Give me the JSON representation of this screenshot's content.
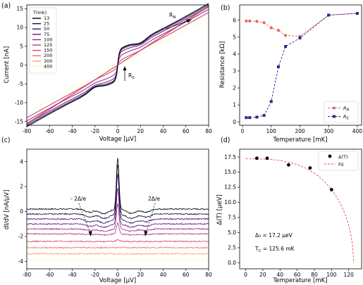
{
  "panels": {
    "a": "(a)",
    "b": "(b)",
    "c": "(c)",
    "d": "(d)"
  },
  "chart_data": [
    {
      "id": "a",
      "type": "line",
      "xlabel": "Voltage [μV]",
      "ylabel": "Current [nA]",
      "xlim": [
        -80,
        80
      ],
      "ylim": [
        -16,
        16
      ],
      "xticks": [
        -80,
        -60,
        -40,
        -20,
        0,
        20,
        40,
        60,
        80
      ],
      "yticks": [
        -15,
        -10,
        -5,
        0,
        5,
        10,
        15
      ],
      "legend_title": "T(mk)",
      "legend_position": "top-left",
      "series": [
        {
          "name": "13",
          "color": "#000004",
          "R": 5.2,
          "jump": 4.3,
          "dip": 0.9
        },
        {
          "name": "25",
          "color": "#140e36",
          "R": 5.2,
          "jump": 4.2,
          "dip": 0.9
        },
        {
          "name": "50",
          "color": "#3b0f70",
          "R": 5.3,
          "jump": 3.9,
          "dip": 0.8
        },
        {
          "name": "75",
          "color": "#641a80",
          "R": 5.4,
          "jump": 3.3,
          "dip": 0.6
        },
        {
          "name": "100",
          "color": "#8c2981",
          "R": 5.6,
          "jump": 2.3,
          "dip": 0.4
        },
        {
          "name": "125",
          "color": "#b73779",
          "R": 5.8,
          "jump": 0.9,
          "dip": 0.15
        },
        {
          "name": "150",
          "color": "#de4968",
          "R": 5.1,
          "jump": 0,
          "dip": 0
        },
        {
          "name": "200",
          "color": "#f7705c",
          "R": 5.1,
          "jump": 0,
          "dip": 0
        },
        {
          "name": "300",
          "color": "#fe9f6d",
          "R": 5.2,
          "jump": 0,
          "dip": 0
        },
        {
          "name": "400",
          "color": "#fbfdbf",
          "R": 6.4,
          "jump": 0,
          "dip": 0
        }
      ],
      "annotations": {
        "rn": "R",
        "rn_sub": "N",
        "rs": "R",
        "rs_sub": "S"
      }
    },
    {
      "id": "b",
      "type": "line",
      "xlabel": "Temperature [mK]",
      "ylabel": "Resistance [kΩ]",
      "xlim": [
        -10,
        415
      ],
      "ylim": [
        -0.2,
        6.9
      ],
      "xticks": [
        0,
        100,
        200,
        300,
        400
      ],
      "yticks": [
        0,
        1,
        2,
        3,
        4,
        5,
        6
      ],
      "legend_position": "bottom-right",
      "x": [
        13,
        25,
        50,
        75,
        100,
        125,
        150,
        200,
        300,
        400
      ],
      "series": [
        {
          "name": "R",
          "sub": "N",
          "color": "#ec6464",
          "marker": "circle",
          "values": [
            5.95,
            5.95,
            5.93,
            5.85,
            5.55,
            5.4,
            5.1,
            5.05,
            6.3,
            6.4
          ]
        },
        {
          "name": "R",
          "sub": "S",
          "color": "#3b1f8c",
          "marker": "square",
          "values": [
            0.25,
            0.25,
            0.28,
            0.38,
            1.2,
            3.25,
            4.45,
            4.95,
            6.3,
            6.4
          ]
        }
      ]
    },
    {
      "id": "c",
      "type": "line",
      "xlabel": "Voltage [μV]",
      "ylabel": "dI/dV [nA/μV]",
      "xlim": [
        -80,
        80
      ],
      "ylim": [
        -4.6,
        5.0
      ],
      "xticks": [
        -80,
        -60,
        -40,
        -20,
        0,
        20,
        40,
        60,
        80
      ],
      "yticks": [
        -4,
        -2,
        0,
        2,
        4
      ],
      "offsets": [
        0.2,
        -0.2,
        -0.6,
        -1.0,
        -1.4,
        -1.8,
        -2.4,
        -2.9,
        -3.4,
        -3.9
      ],
      "peaks": [
        4.1,
        4.0,
        3.6,
        2.9,
        2.0,
        0.9,
        0.15,
        0,
        0,
        0
      ],
      "annotations": {
        "left": "- 2Δ/e",
        "right": "2Δ/e"
      }
    },
    {
      "id": "d",
      "type": "scatter",
      "xlabel": "Temperature [mK]",
      "ylabel": "Δ(T) [μeV]",
      "xlim": [
        -7,
        135
      ],
      "ylim": [
        -1.0,
        18.8
      ],
      "xticks": [
        0,
        20,
        40,
        60,
        80,
        100,
        120
      ],
      "yticks": [
        0.0,
        2.5,
        5.0,
        7.5,
        10.0,
        12.5,
        15.0,
        17.5
      ],
      "ytick_labels": [
        "0.0",
        "2.5",
        "5.0",
        "7.5",
        "10.0",
        "12.5",
        "15.0",
        "17.5"
      ],
      "legend_position": "top-right",
      "points": {
        "name": "Δ(T)",
        "x": [
          13,
          25,
          50,
          75,
          100
        ],
        "y": [
          17.3,
          17.3,
          16.2,
          15.7,
          12.1
        ]
      },
      "fit": {
        "name": "Fit",
        "delta0": 17.2,
        "tc": 125.6,
        "color": "#e0524a"
      },
      "text": {
        "delta_eq": "Δ₀ = 17.2 μeV",
        "tc_eq": "T",
        "tc_sub": "C",
        "tc_val": " = 125.6 mK"
      }
    }
  ]
}
